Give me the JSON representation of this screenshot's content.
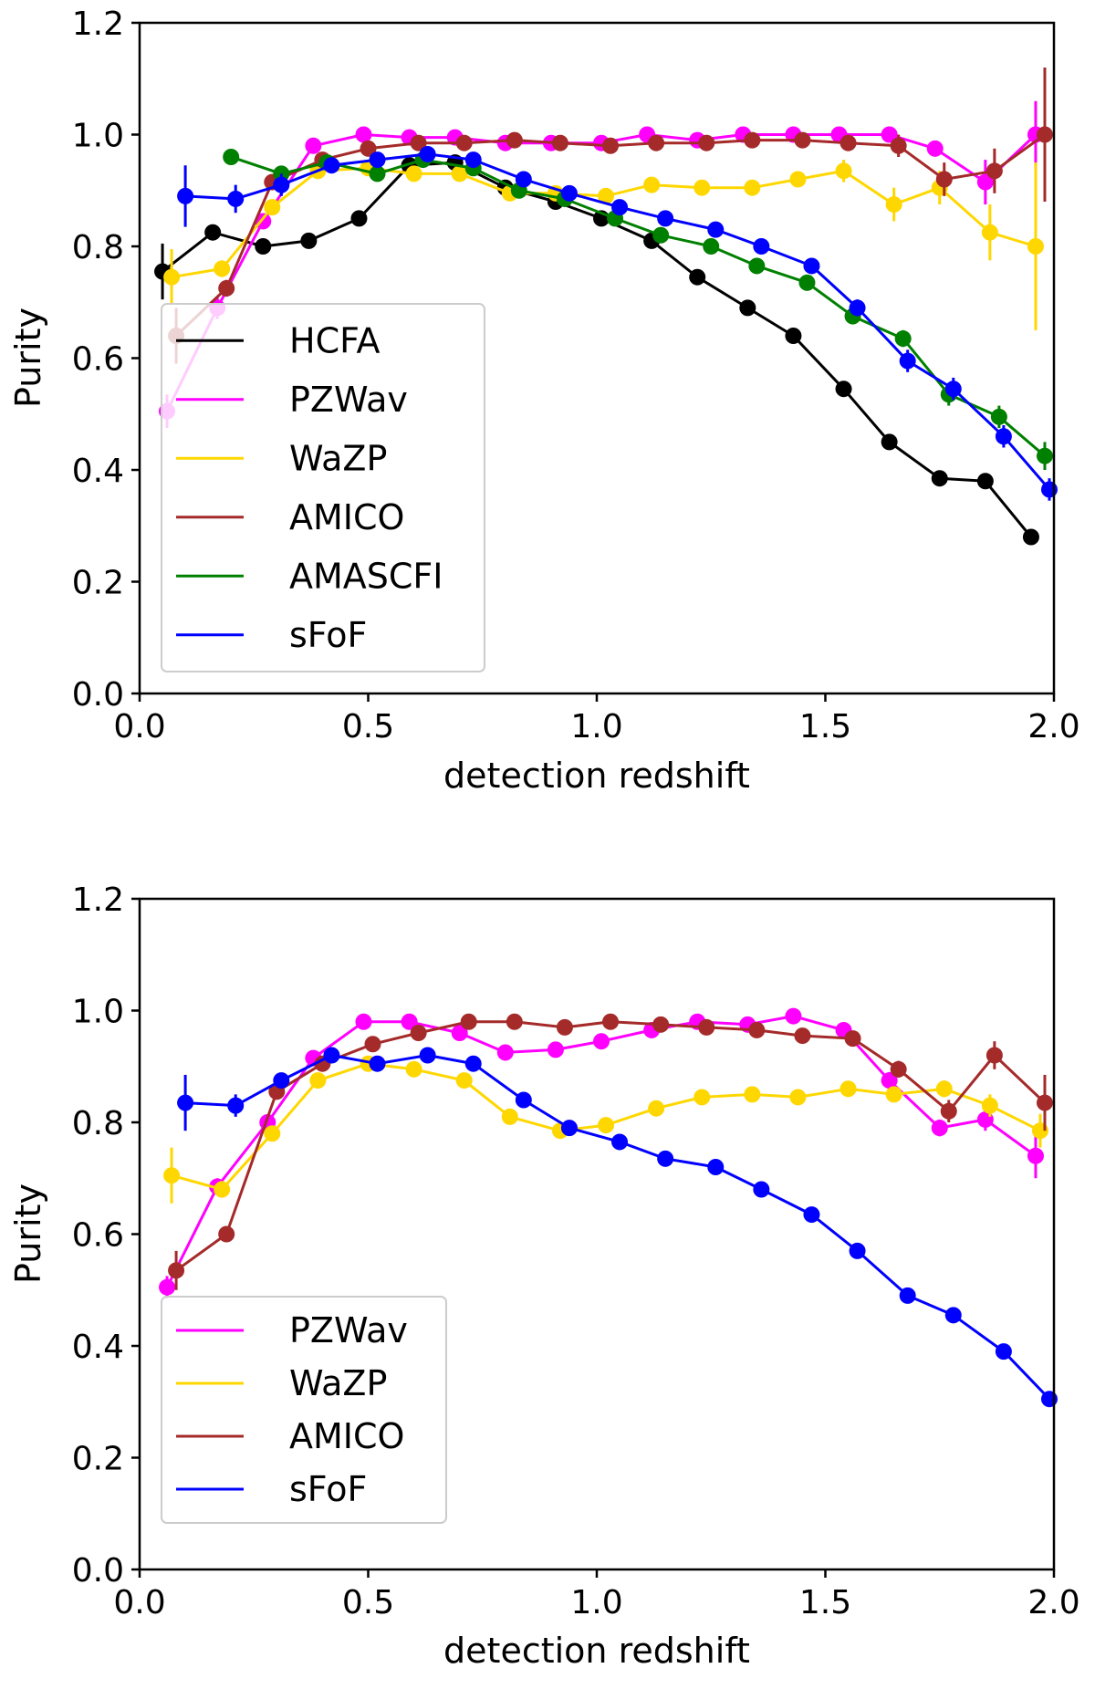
{
  "chart_data": [
    {
      "type": "line",
      "xlabel": "detection redshift",
      "ylabel": "Purity",
      "xlim": [
        0.0,
        2.0
      ],
      "ylim": [
        0.0,
        1.2
      ],
      "xticks": [
        "0.0",
        "0.5",
        "1.0",
        "1.5",
        "2.0"
      ],
      "yticks": [
        "0.0",
        "0.2",
        "0.4",
        "0.6",
        "0.8",
        "1.0",
        "1.2"
      ],
      "legend_position": "lower-left",
      "series": [
        {
          "name": "HCFA",
          "color": "#000000",
          "x": [
            0.05,
            0.16,
            0.27,
            0.37,
            0.48,
            0.59,
            0.69,
            0.8,
            0.91,
            1.01,
            1.12,
            1.22,
            1.33,
            1.43,
            1.54,
            1.64,
            1.75,
            1.85,
            1.95
          ],
          "y": [
            0.755,
            0.825,
            0.8,
            0.81,
            0.85,
            0.945,
            0.95,
            0.905,
            0.88,
            0.85,
            0.81,
            0.745,
            0.69,
            0.64,
            0.545,
            0.45,
            0.385,
            0.38,
            0.28
          ],
          "err": [
            0.05,
            0.01,
            0.005,
            0.005,
            0.005,
            0.005,
            0.005,
            0.005,
            0.005,
            0.005,
            0.005,
            0.005,
            0.005,
            0.005,
            0.005,
            0.005,
            0.005,
            0.005,
            0.005
          ]
        },
        {
          "name": "PZWav",
          "color": "#ff00ff",
          "x": [
            0.06,
            0.17,
            0.27,
            0.38,
            0.49,
            0.59,
            0.69,
            0.8,
            0.9,
            1.01,
            1.11,
            1.22,
            1.32,
            1.43,
            1.53,
            1.64,
            1.74,
            1.85,
            1.96
          ],
          "y": [
            0.505,
            0.69,
            0.845,
            0.98,
            1.0,
            0.995,
            0.995,
            0.985,
            0.985,
            0.985,
            1.0,
            0.99,
            1.0,
            1.0,
            1.0,
            1.0,
            0.975,
            0.915,
            1.0
          ],
          "err": [
            0.03,
            0.02,
            0.005,
            0.005,
            0.005,
            0.005,
            0.005,
            0.005,
            0.005,
            0.005,
            0.005,
            0.005,
            0.005,
            0.005,
            0.005,
            0.005,
            0.01,
            0.04,
            0.06
          ]
        },
        {
          "name": "WaZP",
          "color": "#ffd700",
          "x": [
            0.07,
            0.18,
            0.29,
            0.39,
            0.5,
            0.6,
            0.7,
            0.81,
            0.91,
            1.02,
            1.12,
            1.23,
            1.34,
            1.44,
            1.54,
            1.65,
            1.75,
            1.86,
            1.96
          ],
          "y": [
            0.745,
            0.76,
            0.87,
            0.935,
            0.94,
            0.93,
            0.93,
            0.895,
            0.895,
            0.89,
            0.91,
            0.905,
            0.905,
            0.92,
            0.935,
            0.875,
            0.905,
            0.825,
            0.8
          ],
          "err": [
            0.05,
            0.015,
            0.01,
            0.005,
            0.005,
            0.005,
            0.005,
            0.005,
            0.005,
            0.005,
            0.005,
            0.005,
            0.01,
            0.01,
            0.02,
            0.03,
            0.03,
            0.05,
            0.15
          ]
        },
        {
          "name": "AMICO",
          "color": "#a52a2a",
          "x": [
            0.08,
            0.19,
            0.29,
            0.4,
            0.5,
            0.61,
            0.71,
            0.82,
            0.92,
            1.03,
            1.13,
            1.24,
            1.34,
            1.45,
            1.55,
            1.66,
            1.76,
            1.87,
            1.98
          ],
          "y": [
            0.64,
            0.725,
            0.915,
            0.955,
            0.975,
            0.985,
            0.985,
            0.99,
            0.985,
            0.98,
            0.985,
            0.985,
            0.99,
            0.99,
            0.985,
            0.98,
            0.92,
            0.935,
            1.0
          ],
          "err": [
            0.05,
            0.015,
            0.005,
            0.005,
            0.005,
            0.005,
            0.005,
            0.005,
            0.005,
            0.005,
            0.005,
            0.005,
            0.005,
            0.005,
            0.005,
            0.02,
            0.03,
            0.04,
            0.12
          ]
        },
        {
          "name": "AMASCFI",
          "color": "#008000",
          "x": [
            0.2,
            0.31,
            0.41,
            0.52,
            0.62,
            0.73,
            0.83,
            0.93,
            1.04,
            1.14,
            1.25,
            1.35,
            1.46,
            1.56,
            1.67,
            1.77,
            1.88,
            1.98
          ],
          "y": [
            0.96,
            0.93,
            0.95,
            0.93,
            0.955,
            0.94,
            0.9,
            0.885,
            0.85,
            0.82,
            0.8,
            0.765,
            0.735,
            0.675,
            0.635,
            0.535,
            0.495,
            0.425
          ],
          "err": [
            0.005,
            0.005,
            0.005,
            0.005,
            0.005,
            0.005,
            0.005,
            0.005,
            0.005,
            0.005,
            0.005,
            0.005,
            0.005,
            0.01,
            0.015,
            0.02,
            0.02,
            0.025
          ]
        },
        {
          "name": "sFoF",
          "color": "#0000ff",
          "x": [
            0.1,
            0.21,
            0.31,
            0.42,
            0.52,
            0.63,
            0.73,
            0.84,
            0.94,
            1.05,
            1.15,
            1.26,
            1.36,
            1.47,
            1.57,
            1.68,
            1.78,
            1.89,
            1.99
          ],
          "y": [
            0.89,
            0.885,
            0.91,
            0.945,
            0.955,
            0.965,
            0.955,
            0.92,
            0.895,
            0.87,
            0.85,
            0.83,
            0.8,
            0.765,
            0.69,
            0.595,
            0.545,
            0.46,
            0.365
          ],
          "err": [
            0.055,
            0.025,
            0.02,
            0.005,
            0.005,
            0.005,
            0.005,
            0.005,
            0.005,
            0.005,
            0.005,
            0.005,
            0.005,
            0.005,
            0.015,
            0.02,
            0.02,
            0.02,
            0.02
          ]
        }
      ]
    },
    {
      "type": "line",
      "xlabel": "detection redshift",
      "ylabel": "Purity",
      "xlim": [
        0.0,
        2.0
      ],
      "ylim": [
        0.0,
        1.2
      ],
      "xticks": [
        "0.0",
        "0.5",
        "1.0",
        "1.5",
        "2.0"
      ],
      "yticks": [
        "0.0",
        "0.2",
        "0.4",
        "0.6",
        "0.8",
        "1.0",
        "1.2"
      ],
      "legend_position": "lower-left",
      "series": [
        {
          "name": "PZWav",
          "color": "#ff00ff",
          "x": [
            0.06,
            0.17,
            0.28,
            0.38,
            0.49,
            0.59,
            0.7,
            0.8,
            0.91,
            1.01,
            1.12,
            1.22,
            1.33,
            1.43,
            1.54,
            1.64,
            1.75,
            1.85,
            1.96
          ],
          "y": [
            0.505,
            0.685,
            0.8,
            0.915,
            0.98,
            0.98,
            0.96,
            0.925,
            0.93,
            0.945,
            0.965,
            0.98,
            0.975,
            0.99,
            0.965,
            0.875,
            0.79,
            0.805,
            0.74
          ],
          "err": [
            0.02,
            0.015,
            0.01,
            0.005,
            0.005,
            0.005,
            0.005,
            0.005,
            0.005,
            0.005,
            0.005,
            0.005,
            0.005,
            0.005,
            0.01,
            0.015,
            0.015,
            0.02,
            0.04
          ]
        },
        {
          "name": "WaZP",
          "color": "#ffd700",
          "x": [
            0.07,
            0.18,
            0.29,
            0.39,
            0.5,
            0.6,
            0.71,
            0.81,
            0.92,
            1.02,
            1.13,
            1.23,
            1.34,
            1.44,
            1.55,
            1.65,
            1.76,
            1.86,
            1.97
          ],
          "y": [
            0.705,
            0.68,
            0.78,
            0.875,
            0.905,
            0.895,
            0.875,
            0.81,
            0.785,
            0.795,
            0.825,
            0.845,
            0.85,
            0.845,
            0.86,
            0.85,
            0.86,
            0.83,
            0.785
          ],
          "err": [
            0.05,
            0.015,
            0.01,
            0.005,
            0.005,
            0.005,
            0.005,
            0.005,
            0.005,
            0.005,
            0.005,
            0.005,
            0.005,
            0.005,
            0.005,
            0.01,
            0.015,
            0.02,
            0.03
          ]
        },
        {
          "name": "AMICO",
          "color": "#a52a2a",
          "x": [
            0.08,
            0.19,
            0.3,
            0.4,
            0.51,
            0.61,
            0.72,
            0.82,
            0.93,
            1.03,
            1.14,
            1.24,
            1.35,
            1.45,
            1.56,
            1.66,
            1.77,
            1.87,
            1.98
          ],
          "y": [
            0.535,
            0.6,
            0.855,
            0.905,
            0.94,
            0.96,
            0.98,
            0.98,
            0.97,
            0.98,
            0.975,
            0.97,
            0.965,
            0.955,
            0.95,
            0.895,
            0.82,
            0.92,
            0.835
          ],
          "err": [
            0.035,
            0.01,
            0.005,
            0.005,
            0.005,
            0.005,
            0.005,
            0.005,
            0.005,
            0.005,
            0.005,
            0.005,
            0.005,
            0.005,
            0.005,
            0.015,
            0.02,
            0.025,
            0.05
          ]
        },
        {
          "name": "sFoF",
          "color": "#0000ff",
          "x": [
            0.1,
            0.21,
            0.31,
            0.42,
            0.52,
            0.63,
            0.73,
            0.84,
            0.94,
            1.05,
            1.15,
            1.26,
            1.36,
            1.47,
            1.57,
            1.68,
            1.78,
            1.89,
            1.99
          ],
          "y": [
            0.835,
            0.83,
            0.875,
            0.92,
            0.905,
            0.92,
            0.905,
            0.84,
            0.79,
            0.765,
            0.735,
            0.72,
            0.68,
            0.635,
            0.57,
            0.49,
            0.455,
            0.39,
            0.305
          ],
          "err": [
            0.05,
            0.02,
            0.005,
            0.005,
            0.005,
            0.005,
            0.005,
            0.005,
            0.005,
            0.005,
            0.005,
            0.005,
            0.005,
            0.005,
            0.005,
            0.005,
            0.005,
            0.005,
            0.005
          ]
        }
      ]
    }
  ]
}
